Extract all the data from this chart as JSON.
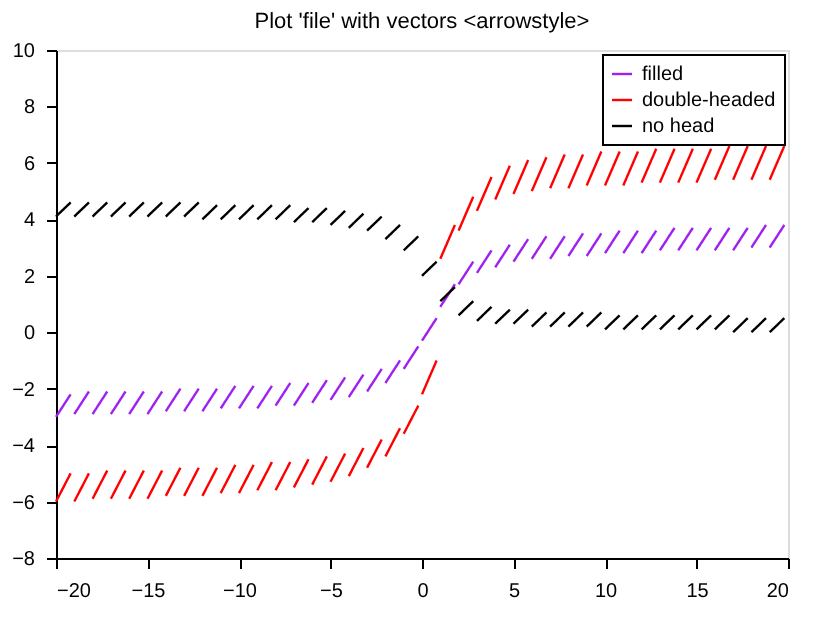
{
  "chart_data": {
    "type": "line",
    "title": "Plot 'file' with vectors <arrowstyle>",
    "x": [
      -20,
      -19.2,
      -19,
      -18.2,
      -18,
      -17.2,
      -17,
      -16.2,
      -16,
      -15.2,
      -15,
      -14.2,
      -14,
      -13.2,
      -13,
      -12.2,
      -12,
      -11.2,
      -11,
      -10.2,
      -10,
      -9.2,
      -9,
      -8.2,
      -8,
      -7.2,
      -7,
      -6.2,
      -6,
      -5.2,
      -5,
      -4.2,
      -4,
      -3.2,
      -3,
      -2.2,
      -2,
      -1.2,
      -1,
      -0.2,
      0,
      0.8,
      1,
      1.8,
      2,
      2.8,
      3,
      3.8,
      4,
      4.8,
      5,
      5.8,
      6,
      6.8,
      7,
      7.8,
      8,
      8.8,
      9,
      9.8,
      10,
      10.8,
      11,
      11.8,
      12,
      12.8,
      13,
      13.8,
      14,
      14.8,
      15,
      15.8,
      16,
      16.8,
      17,
      17.8,
      18,
      18.8,
      19,
      19.8
    ],
    "series": [
      {
        "name": "filled",
        "color": "#a020f0",
        "line_style": "dashed",
        "values": [
          -3.0,
          -2.2,
          -2.9,
          -2.1,
          -2.9,
          -2.1,
          -2.9,
          -2.1,
          -2.9,
          -2.1,
          -2.9,
          -2.1,
          -2.8,
          -2.0,
          -2.8,
          -2.0,
          -2.8,
          -2.0,
          -2.7,
          -1.9,
          -2.7,
          -1.9,
          -2.7,
          -1.9,
          -2.6,
          -1.8,
          -2.6,
          -1.8,
          -2.5,
          -1.7,
          -2.4,
          -1.6,
          -2.3,
          -1.5,
          -2.1,
          -1.3,
          -1.8,
          -1.0,
          -1.3,
          -0.5,
          -0.3,
          0.5,
          0.9,
          1.7,
          1.7,
          2.5,
          2.1,
          2.9,
          2.3,
          3.1,
          2.5,
          3.3,
          2.6,
          3.4,
          2.6,
          3.4,
          2.7,
          3.5,
          2.7,
          3.5,
          2.8,
          3.6,
          2.8,
          3.6,
          2.8,
          3.6,
          2.9,
          3.7,
          2.9,
          3.7,
          2.9,
          3.7,
          2.9,
          3.7,
          2.9,
          3.7,
          3.0,
          3.8,
          3.0,
          3.8
        ]
      },
      {
        "name": "double-headed",
        "color": "#ff0000",
        "line_style": "dashed",
        "values": [
          -6.0,
          -5.0,
          -6.0,
          -5.0,
          -5.9,
          -4.9,
          -5.9,
          -4.9,
          -5.9,
          -4.9,
          -5.9,
          -4.9,
          -5.8,
          -4.8,
          -5.8,
          -4.8,
          -5.8,
          -4.8,
          -5.7,
          -4.7,
          -5.7,
          -4.7,
          -5.6,
          -4.6,
          -5.6,
          -4.6,
          -5.5,
          -4.5,
          -5.4,
          -4.4,
          -5.3,
          -4.3,
          -5.1,
          -4.1,
          -4.8,
          -3.8,
          -4.4,
          -3.4,
          -3.6,
          -2.6,
          -2.2,
          -1.0,
          2.6,
          3.8,
          3.6,
          4.8,
          4.3,
          5.5,
          4.7,
          5.9,
          4.9,
          6.1,
          5.0,
          6.2,
          5.1,
          6.3,
          5.1,
          6.3,
          5.2,
          6.4,
          5.2,
          6.4,
          5.2,
          6.4,
          5.3,
          6.5,
          5.3,
          6.5,
          5.3,
          6.5,
          5.3,
          6.5,
          5.4,
          6.6,
          5.4,
          6.6,
          5.4,
          6.6,
          5.4,
          6.6
        ]
      },
      {
        "name": "no head",
        "color": "#000000",
        "line_style": "dashed",
        "values": [
          4.1,
          4.6,
          4.1,
          4.6,
          4.1,
          4.6,
          4.1,
          4.6,
          4.1,
          4.6,
          4.1,
          4.6,
          4.1,
          4.6,
          4.1,
          4.6,
          4.0,
          4.5,
          4.0,
          4.5,
          4.0,
          4.5,
          4.0,
          4.5,
          4.0,
          4.5,
          3.9,
          4.4,
          3.9,
          4.4,
          3.8,
          4.3,
          3.7,
          4.2,
          3.6,
          4.1,
          3.3,
          3.8,
          2.9,
          3.4,
          2.0,
          2.5,
          1.1,
          1.6,
          0.6,
          1.1,
          0.4,
          0.9,
          0.3,
          0.8,
          0.3,
          0.8,
          0.2,
          0.7,
          0.2,
          0.7,
          0.2,
          0.7,
          0.2,
          0.7,
          0.1,
          0.6,
          0.1,
          0.6,
          0.1,
          0.6,
          0.1,
          0.6,
          0.1,
          0.6,
          0.1,
          0.6,
          0.1,
          0.6,
          0.0,
          0.5,
          0.0,
          0.5,
          0.0,
          0.5
        ]
      }
    ],
    "xlim": [
      -20,
      20
    ],
    "xticks": [
      -20,
      -15,
      -10,
      -5,
      0,
      5,
      10,
      15,
      20
    ],
    "ylim": [
      -8,
      10
    ],
    "yticks": [
      -8,
      -6,
      -4,
      -2,
      0,
      2,
      4,
      6,
      8,
      10
    ],
    "grid": false,
    "legend": "top right",
    "marker": "none"
  }
}
